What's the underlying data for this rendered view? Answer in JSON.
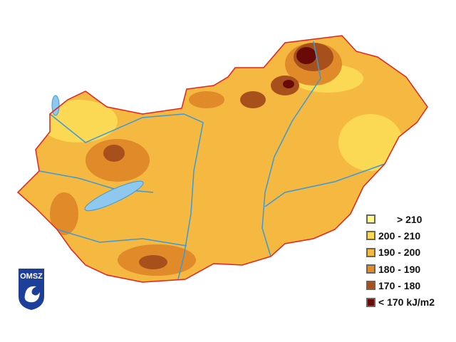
{
  "map": {
    "region": "Hungary",
    "border_color": "#e8201e",
    "river_color": "#3a9ad9",
    "lake_color": "#8ec8ef"
  },
  "legend": {
    "items": [
      {
        "label": "> 210",
        "color": "#fff88a"
      },
      {
        "label": "200 - 210",
        "color": "#fbd955"
      },
      {
        "label": "190 - 200",
        "color": "#f5b840"
      },
      {
        "label": "180 - 190",
        "color": "#e08a2a"
      },
      {
        "label": "170 - 180",
        "color": "#a8501c"
      },
      {
        "label": "< 170 kJ/m2",
        "color": "#6a0a06"
      }
    ]
  },
  "logo": {
    "text": "OMSZ",
    "color": "#1d3f9a"
  }
}
